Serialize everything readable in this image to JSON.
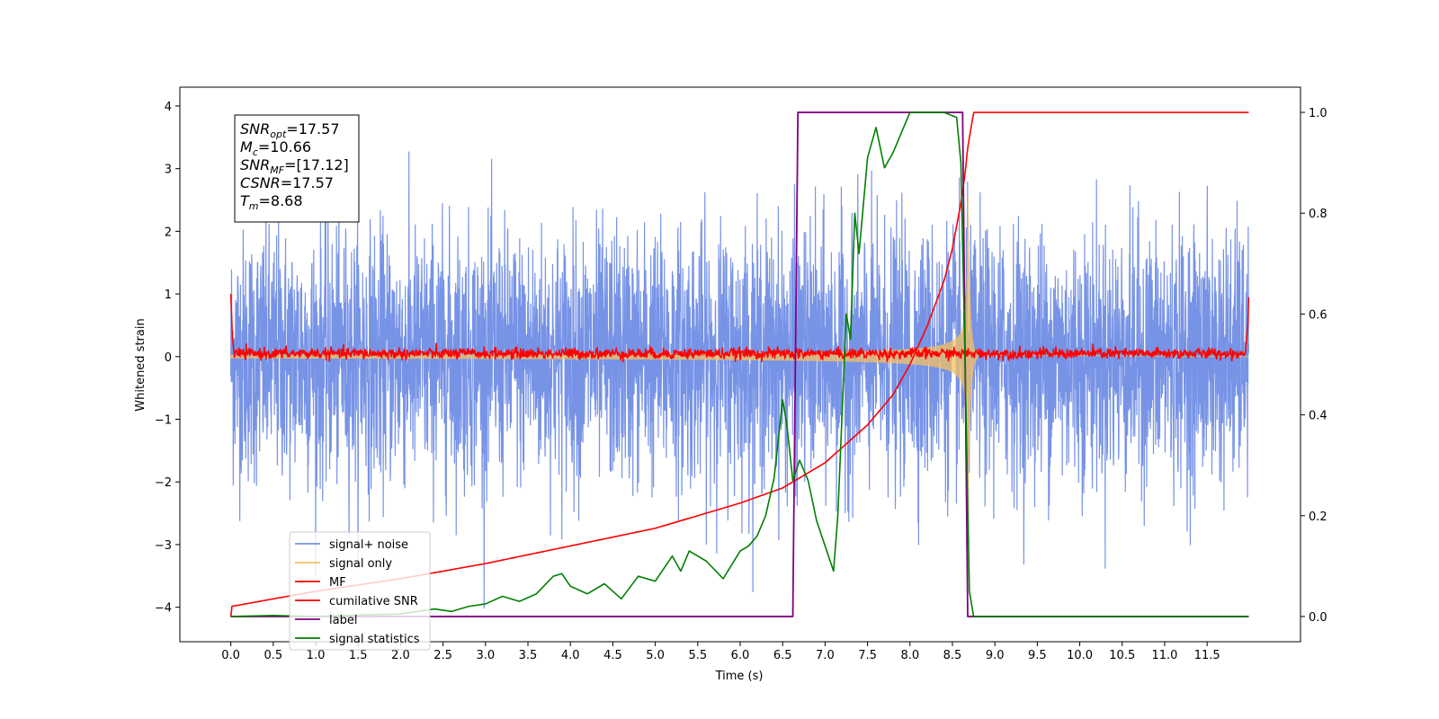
{
  "chart_data": {
    "type": "line",
    "title": "",
    "xlabel": "Time (s)",
    "ylabel": "Whitened strain",
    "y2label": "",
    "xlim": [
      -0.6,
      12.6
    ],
    "ylim": [
      -4.55,
      4.3
    ],
    "y2lim": [
      -0.05,
      1.05
    ],
    "x_ticks": [
      "0.0",
      "0.5",
      "1.0",
      "1.5",
      "2.0",
      "2.5",
      "3.0",
      "3.5",
      "4.0",
      "4.5",
      "5.0",
      "5.5",
      "6.0",
      "6.5",
      "7.0",
      "7.5",
      "8.0",
      "8.5",
      "9.0",
      "9.5",
      "10.0",
      "10.5",
      "11.0",
      "11.5"
    ],
    "y_ticks": [
      "−4",
      "−3",
      "−2",
      "−1",
      "0",
      "1",
      "2",
      "3",
      "4"
    ],
    "y2_ticks": [
      "0.0",
      "0.2",
      "0.4",
      "0.6",
      "0.8",
      "1.0"
    ],
    "grid": false,
    "legend_position": "lower-left",
    "annotation": {
      "lines": [
        {
          "main": "SNR",
          "sub": "opt",
          "value": "=17.57"
        },
        {
          "main": "M",
          "sub": "c",
          "value": "=10.66"
        },
        {
          "main": "SNR",
          "sub": "MF",
          "value": "=[17.12]"
        },
        {
          "main": "CSNR",
          "sub": "",
          "value": "=17.57"
        },
        {
          "main": "T",
          "sub": "m",
          "value": "=8.68"
        }
      ]
    },
    "series": [
      {
        "name": "signal+ noise",
        "color": "#7793e6",
        "axis": "left",
        "description_values": {
          "x_range": [
            0.0,
            11.99
          ],
          "amplitude_sigma": 1.0
        }
      },
      {
        "name": "signal only",
        "color": "#f5c063",
        "axis": "left",
        "envelope": {
          "t_start": 0.0,
          "t_merge": 8.68,
          "amp_start": 0.03,
          "amp_peak": 3.0
        }
      },
      {
        "name": "MF",
        "color": "#ff0000",
        "axis": "left",
        "points": {
          "x": [
            0.0,
            0.02,
            0.05,
            11.95,
            11.98,
            11.99
          ],
          "y": [
            1.0,
            0.3,
            0.05,
            0.05,
            0.5,
            0.95
          ]
        }
      },
      {
        "name": "cumilative SNR",
        "color": "#ff0000",
        "axis": "right",
        "points": {
          "x": [
            0.0,
            0.01,
            0.5,
            1.0,
            2.0,
            3.0,
            4.0,
            5.0,
            6.0,
            6.5,
            7.0,
            7.5,
            7.8,
            8.0,
            8.2,
            8.4,
            8.5,
            8.6,
            8.65,
            8.68,
            8.75,
            11.99
          ],
          "y": [
            -0.001,
            0.02,
            0.035,
            0.05,
            0.075,
            0.105,
            0.14,
            0.175,
            0.225,
            0.255,
            0.305,
            0.38,
            0.44,
            0.5,
            0.575,
            0.665,
            0.73,
            0.82,
            0.88,
            0.93,
            1.0,
            1.0
          ]
        }
      },
      {
        "name": "label",
        "color": "#800080",
        "axis": "right",
        "points": {
          "x": [
            0.0,
            6.62,
            6.68,
            8.62,
            8.68,
            11.99
          ],
          "y": [
            0.0,
            0.0,
            1.0,
            1.0,
            0.0,
            0.0
          ]
        }
      },
      {
        "name": "signal statistics",
        "color": "#008000",
        "axis": "right",
        "points": {
          "x": [
            0.0,
            0.5,
            1.0,
            1.5,
            2.0,
            2.2,
            2.4,
            2.6,
            2.8,
            3.0,
            3.2,
            3.4,
            3.6,
            3.8,
            3.9,
            4.0,
            4.2,
            4.4,
            4.6,
            4.8,
            5.0,
            5.2,
            5.3,
            5.4,
            5.5,
            5.6,
            5.8,
            6.0,
            6.1,
            6.2,
            6.3,
            6.4,
            6.5,
            6.55,
            6.62,
            6.7,
            6.8,
            6.9,
            7.0,
            7.1,
            7.15,
            7.25,
            7.3,
            7.35,
            7.4,
            7.5,
            7.6,
            7.7,
            7.8,
            7.9,
            8.0,
            8.2,
            8.4,
            8.55,
            8.6,
            8.65,
            8.7,
            8.75,
            11.99
          ],
          "y": [
            0.0,
            0.002,
            0.0,
            0.003,
            0.005,
            0.01,
            0.015,
            0.01,
            0.02,
            0.025,
            0.04,
            0.03,
            0.045,
            0.08,
            0.085,
            0.06,
            0.045,
            0.065,
            0.035,
            0.08,
            0.07,
            0.12,
            0.09,
            0.13,
            0.12,
            0.11,
            0.075,
            0.13,
            0.14,
            0.16,
            0.2,
            0.275,
            0.43,
            0.38,
            0.27,
            0.31,
            0.27,
            0.19,
            0.14,
            0.09,
            0.2,
            0.6,
            0.55,
            0.8,
            0.72,
            0.91,
            0.97,
            0.89,
            0.92,
            0.96,
            1.0,
            1.0,
            1.0,
            0.99,
            0.9,
            0.5,
            0.05,
            0.0,
            0.0
          ]
        }
      }
    ]
  }
}
